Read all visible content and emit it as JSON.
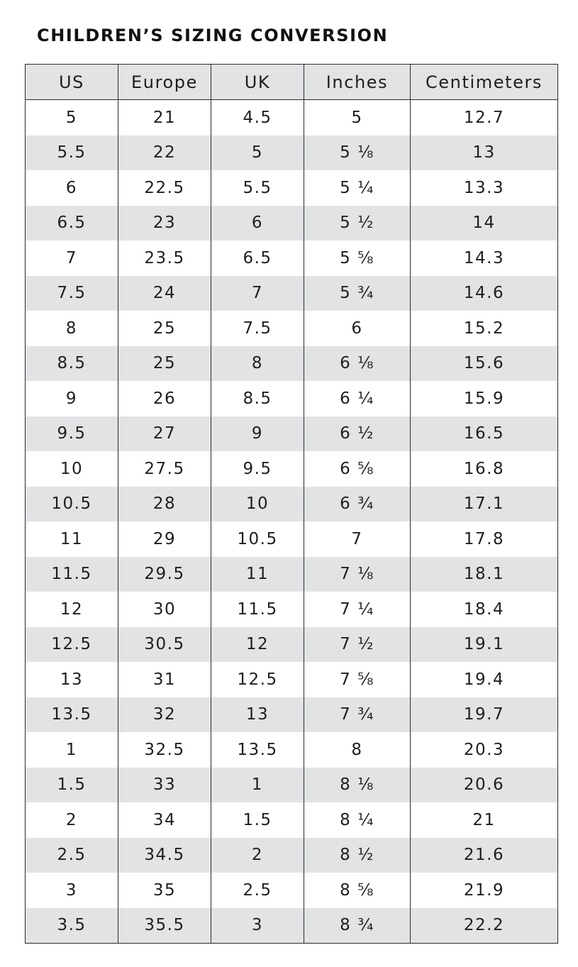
{
  "title": "CHILDREN’S SIZING CONVERSION",
  "table": {
    "columns": [
      "US",
      "Europe",
      "UK",
      "Inches",
      "Centimeters"
    ],
    "rows": [
      [
        "5",
        "21",
        "4.5",
        "5",
        "12.7"
      ],
      [
        "5.5",
        "22",
        "5",
        "5 ⅛",
        "13"
      ],
      [
        "6",
        "22.5",
        "5.5",
        "5 ¼",
        "13.3"
      ],
      [
        "6.5",
        "23",
        "6",
        "5 ½",
        "14"
      ],
      [
        "7",
        "23.5",
        "6.5",
        "5 ⅝",
        "14.3"
      ],
      [
        "7.5",
        "24",
        "7",
        "5 ¾",
        "14.6"
      ],
      [
        "8",
        "25",
        "7.5",
        "6",
        "15.2"
      ],
      [
        "8.5",
        "25",
        "8",
        "6 ⅛",
        "15.6"
      ],
      [
        "9",
        "26",
        "8.5",
        "6 ¼",
        "15.9"
      ],
      [
        "9.5",
        "27",
        "9",
        "6 ½",
        "16.5"
      ],
      [
        "10",
        "27.5",
        "9.5",
        "6 ⅝",
        "16.8"
      ],
      [
        "10.5",
        "28",
        "10",
        "6 ¾",
        "17.1"
      ],
      [
        "11",
        "29",
        "10.5",
        "7",
        "17.8"
      ],
      [
        "11.5",
        "29.5",
        "11",
        "7 ⅛",
        "18.1"
      ],
      [
        "12",
        "30",
        "11.5",
        "7 ¼",
        "18.4"
      ],
      [
        "12.5",
        "30.5",
        "12",
        "7 ½",
        "19.1"
      ],
      [
        "13",
        "31",
        "12.5",
        "7 ⅝",
        "19.4"
      ],
      [
        "13.5",
        "32",
        "13",
        "7 ¾",
        "19.7"
      ],
      [
        "1",
        "32.5",
        "13.5",
        "8",
        "20.3"
      ],
      [
        "1.5",
        "33",
        "1",
        "8 ⅛",
        "20.6"
      ],
      [
        "2",
        "34",
        "1.5",
        "8 ¼",
        "21"
      ],
      [
        "2.5",
        "34.5",
        "2",
        "8 ½",
        "21.6"
      ],
      [
        "3",
        "35",
        "2.5",
        "8 ⅝",
        "21.9"
      ],
      [
        "3.5",
        "35.5",
        "3",
        "8 ¾",
        "22.2"
      ]
    ]
  },
  "colors": {
    "header_bg": "#e1e3e5",
    "stripe_bg": "#e1e3e5",
    "border": "#2a2a2a",
    "text": "#1e1e1e"
  }
}
